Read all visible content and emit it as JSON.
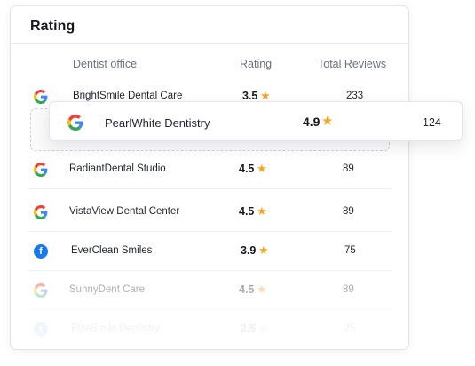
{
  "card": {
    "title": "Rating"
  },
  "columns": {
    "office": "Dentist office",
    "rating": "Rating",
    "total": "Total Reviews"
  },
  "rows": [
    {
      "source": "google",
      "name": "BrightSmile Dental Care",
      "rating": "3.5",
      "total": "233"
    },
    {
      "source": "google",
      "name": "RadiantDental Studio",
      "rating": "4.5",
      "total": "89"
    },
    {
      "source": "google",
      "name": "VistaView Dental Center",
      "rating": "4.5",
      "total": "89"
    },
    {
      "source": "facebook",
      "name": "EverClean Smiles",
      "rating": "3.9",
      "total": "75"
    },
    {
      "source": "google",
      "name": "SunnyDent Care",
      "rating": "4.5",
      "total": "89"
    },
    {
      "source": "facebook",
      "name": "EliteSmile Dentistry",
      "rating": "2.5",
      "total": "25"
    }
  ],
  "dragged_row": {
    "source": "google",
    "name": "PearlWhite Dentistry",
    "rating": "4.9",
    "total": "124"
  },
  "icons": {
    "google": "google-logo-icon",
    "facebook": "facebook-logo-icon",
    "star": "star-icon"
  },
  "colors": {
    "star": "#f5a623",
    "google_blue": "#4285F4",
    "google_red": "#EA4335",
    "google_yellow": "#FBBC05",
    "google_green": "#34A853",
    "facebook_blue": "#1877f2"
  },
  "glyphs": {
    "google": "G",
    "facebook": "f",
    "star": "★"
  }
}
